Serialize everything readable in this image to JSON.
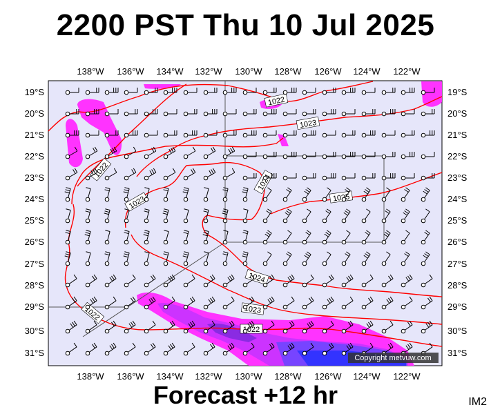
{
  "header": {
    "title": "2200 PST Thu 10 Jul 2025"
  },
  "footer": {
    "forecast": "Forecast +12 hr",
    "code": "IM2"
  },
  "map": {
    "lon_labels": [
      "138°W",
      "136°W",
      "134°W",
      "132°W",
      "130°W",
      "128°W",
      "126°W",
      "124°W",
      "122°W"
    ],
    "lat_labels": [
      "19°S",
      "20°S",
      "21°S",
      "22°S",
      "23°S",
      "24°S",
      "25°S",
      "26°S",
      "27°S",
      "28°S",
      "29°S",
      "30°S",
      "31°S"
    ],
    "isobar_labels": [
      "1022",
      "1023",
      "1022",
      "1023",
      "1024",
      "1025",
      "1024",
      "1023",
      "1022",
      "1022"
    ],
    "copyright": "Copyright metvuw.com",
    "colors": {
      "background": "#e6e6fa",
      "isobar": "#ff0000",
      "rain_light": "#ff33ff",
      "rain_medium": "#cc33ff",
      "rain_heavy": "#3333ff"
    }
  }
}
